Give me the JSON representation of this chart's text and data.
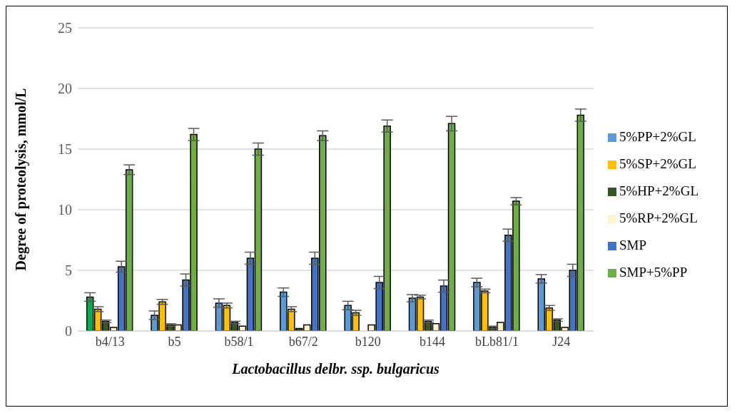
{
  "chart_data": {
    "type": "bar",
    "xlabel": "Lactobacillus delbr. ssp. bulgaricus",
    "ylabel": "Degree of proteolysis, mmol/L",
    "categories": [
      "b4/13",
      "b5",
      "b58/1",
      "b67/2",
      "b120",
      "b144",
      "bLb81/1",
      "J24"
    ],
    "series": [
      {
        "name": "5%PP+2%GL",
        "color": "#5b9bd5",
        "colors": [
          "#00b050",
          "#5b9bd5",
          "#5b9bd5",
          "#5b9bd5",
          "#5b9bd5",
          "#5b9bd5",
          "#5b9bd5",
          "#5b9bd5"
        ],
        "values": [
          2.8,
          1.3,
          2.3,
          3.2,
          2.1,
          2.7,
          4.0,
          4.3
        ],
        "errors": [
          0.35,
          0.35,
          0.35,
          0.35,
          0.35,
          0.3,
          0.35,
          0.35
        ]
      },
      {
        "name": "5%SP+2%GL",
        "color": "#ffc000",
        "values": [
          1.8,
          2.4,
          2.1,
          1.8,
          1.5,
          2.8,
          3.3,
          1.9
        ],
        "errors": [
          0.2,
          0.2,
          0.2,
          0.2,
          0.2,
          0.15,
          0.15,
          0.2
        ]
      },
      {
        "name": "5%HP+2%GL",
        "color": "#375623",
        "values": [
          0.8,
          0.5,
          0.7,
          0.2,
          0,
          0.8,
          0.3,
          0.9
        ],
        "errors": [
          0.1,
          0.1,
          0.1,
          null,
          null,
          0.1,
          0.1,
          0.1
        ]
      },
      {
        "name": "5%RP+2%GL",
        "color": "#fff2cc",
        "values": [
          0.3,
          0.5,
          0.4,
          0.5,
          0.5,
          0.6,
          0.7,
          0.3
        ]
      },
      {
        "name": "SMP",
        "color": "#4472c4",
        "values": [
          5.3,
          4.2,
          6.0,
          6.0,
          4.0,
          3.7,
          7.9,
          5.0
        ],
        "errors": [
          0.45,
          0.5,
          0.5,
          0.5,
          0.5,
          0.5,
          0.5,
          0.5
        ]
      },
      {
        "name": "SMP+5%PP",
        "color": "#70ad47",
        "values": [
          13.3,
          16.2,
          15.0,
          16.1,
          16.9,
          17.1,
          10.7,
          17.8
        ],
        "errors": [
          0.4,
          0.5,
          0.5,
          0.4,
          0.5,
          0.6,
          0.3,
          0.5
        ]
      }
    ],
    "ylim": [
      0,
      25
    ],
    "yticks": [
      0,
      5,
      10,
      15,
      20,
      25
    ],
    "grid": "y",
    "legend": "right"
  }
}
